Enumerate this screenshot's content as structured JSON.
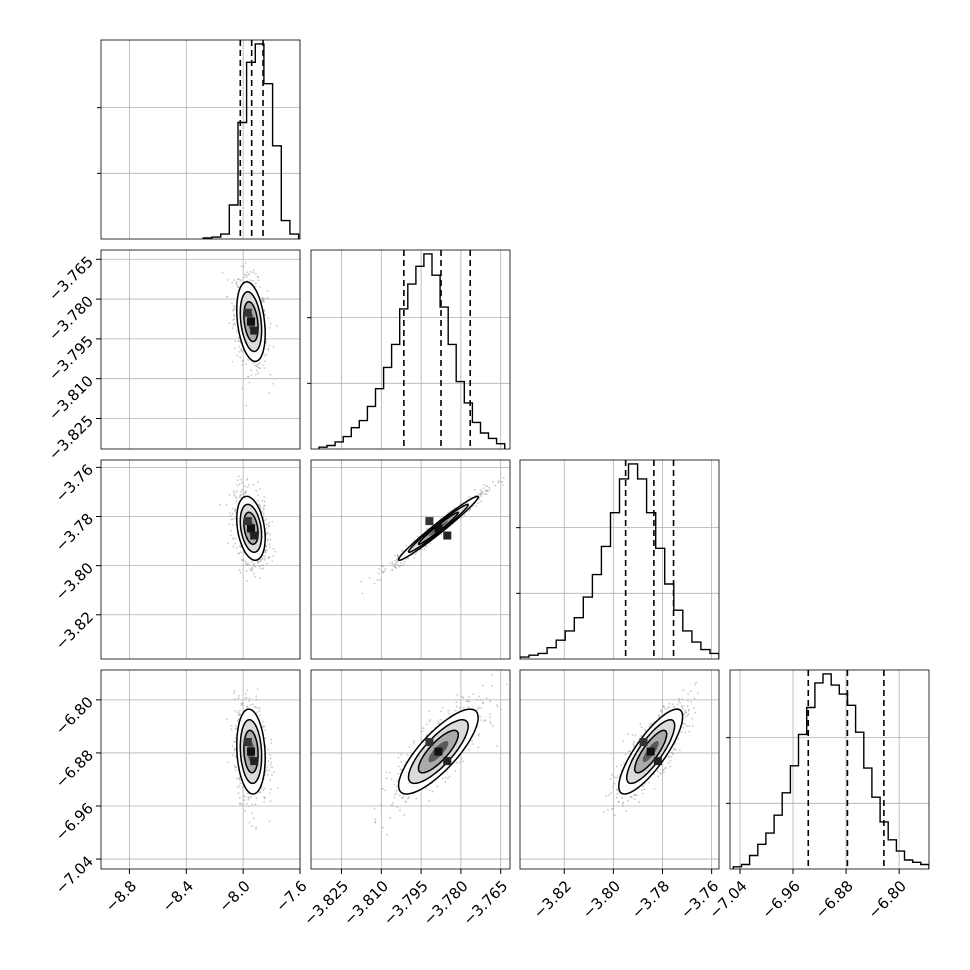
{
  "chart_data": {
    "type": "corner",
    "grid": true,
    "parameters": [
      {
        "index": 0,
        "ticks": [
          -8.8,
          -8.4,
          -8.0,
          -7.6
        ],
        "tick_labels": [
          "−8.8",
          "−8.4",
          "−8.0",
          "−7.6"
        ],
        "range": [
          -9.0,
          -7.6
        ],
        "quantiles": [
          -8.02,
          -7.94,
          -7.86
        ],
        "histogram": {
          "edges_range": [
            -8.28,
            -7.61
          ],
          "counts": [
            1,
            2,
            5,
            35,
            120,
            182,
            201,
            160,
            96,
            19,
            5
          ]
        },
        "contour": {
          "mean": -7.945,
          "sd": 0.05
        }
      },
      {
        "index": 1,
        "ticks": [
          -3.825,
          -3.81,
          -3.795,
          -3.78,
          -3.765
        ],
        "tick_labels": [
          "−3.825",
          "−3.810",
          "−3.795",
          "−3.780",
          "−3.765"
        ],
        "range": [
          -3.8365,
          -3.7615
        ],
        "quantiles": [
          -3.8015,
          -3.7875,
          -3.7765
        ],
        "histogram": {
          "edges_range": [
            -3.8335,
            -3.7635
          ],
          "counts": [
            1,
            2,
            4,
            7,
            12,
            16,
            24,
            34,
            46,
            59,
            79,
            93,
            103,
            110,
            98,
            80,
            59,
            38,
            26,
            15,
            9,
            6,
            3
          ]
        },
        "contour": {
          "mean": -3.7885,
          "sd": 0.0075
        }
      },
      {
        "index": 2,
        "ticks": [
          -3.82,
          -3.8,
          -3.78,
          -3.76
        ],
        "tick_labels": [
          "−3.82",
          "−3.80",
          "−3.78",
          "−3.76"
        ],
        "range": [
          -3.838,
          -3.757
        ],
        "quantiles": [
          -3.795,
          -3.7835,
          -3.7755
        ],
        "histogram": {
          "edges_range": [
            -3.838,
            -3.757
          ],
          "counts": [
            1,
            2,
            3,
            6,
            10,
            15,
            22,
            33,
            45,
            60,
            78,
            96,
            104,
            96,
            78,
            59,
            40,
            26,
            15,
            9,
            5,
            3
          ]
        },
        "contour": {
          "mean": -3.7848,
          "sd": 0.0065
        }
      },
      {
        "index": 3,
        "ticks": [
          -7.04,
          -6.96,
          -6.88,
          -6.8
        ],
        "tick_labels": [
          "−7.04",
          "−6.96",
          "−6.88",
          "−6.80"
        ],
        "range": [
          -7.055,
          -6.755
        ],
        "quantiles": [
          -6.937,
          -6.878,
          -6.823
        ],
        "histogram": {
          "edges_range": [
            -7.05,
            -6.755
          ],
          "counts": [
            1,
            2,
            6,
            11,
            16,
            24,
            34,
            46,
            60,
            72,
            83,
            87,
            82,
            78,
            73,
            61,
            45,
            32,
            21,
            13,
            8,
            4,
            3,
            2
          ]
        },
        "contour": {
          "mean": -6.878,
          "sd": 0.032
        }
      }
    ],
    "correlations": {
      "0-1": -0.3,
      "0-2": -0.3,
      "1-2": 0.98,
      "0-3": -0.15,
      "1-3": 0.8,
      "2-3": 0.82
    },
    "colors": {
      "line": "#000000",
      "grid": "#b0b0b0",
      "points": "#9a9a9a",
      "density": "#000000"
    }
  }
}
